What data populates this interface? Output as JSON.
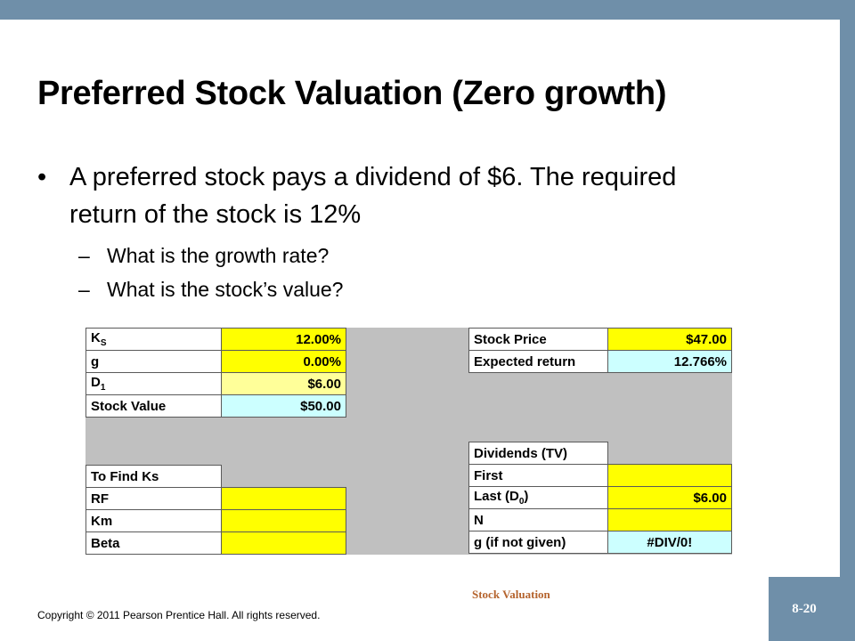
{
  "slide": {
    "title": "Preferred Stock Valuation (Zero growth)",
    "bullet": "A preferred stock pays a dividend of $6. The required return of the stock is 12%",
    "sub_bullets": [
      "What is the growth rate?",
      "What is the stock’s value?"
    ]
  },
  "spreadsheet": {
    "left_top": [
      {
        "label": "K",
        "label_sub": "S",
        "value": "12.00%"
      },
      {
        "label": "g",
        "label_sub": "",
        "value": "0.00%"
      },
      {
        "label": "D",
        "label_sub": "1",
        "value": "$6.00"
      },
      {
        "label": "Stock Value",
        "label_sub": "",
        "value": "$50.00"
      }
    ],
    "left_bottom": [
      {
        "label": "To Find Ks",
        "value": ""
      },
      {
        "label": "RF",
        "value": ""
      },
      {
        "label": "Km",
        "value": ""
      },
      {
        "label": "Beta",
        "value": ""
      }
    ],
    "right_top": [
      {
        "label": "Stock Price",
        "value": "$47.00"
      },
      {
        "label": "Expected return",
        "value": "12.766%"
      }
    ],
    "right_bottom": [
      {
        "label": "Dividends (TV)",
        "label_sub": "",
        "label_after": "",
        "value": ""
      },
      {
        "label": "First",
        "label_sub": "",
        "label_after": "",
        "value": ""
      },
      {
        "label": "Last (D",
        "label_sub": "0",
        "label_after": ")",
        "value": "$6.00"
      },
      {
        "label": "N",
        "label_sub": "",
        "label_after": "",
        "value": ""
      },
      {
        "label": "g (if not given)",
        "label_sub": "",
        "label_after": "",
        "value": "#DIV/0!"
      }
    ]
  },
  "footer": {
    "center": "Stock Valuation",
    "copyright": "Copyright © 2011 Pearson Prentice Hall. All rights reserved.",
    "slide_number": "8-20"
  }
}
